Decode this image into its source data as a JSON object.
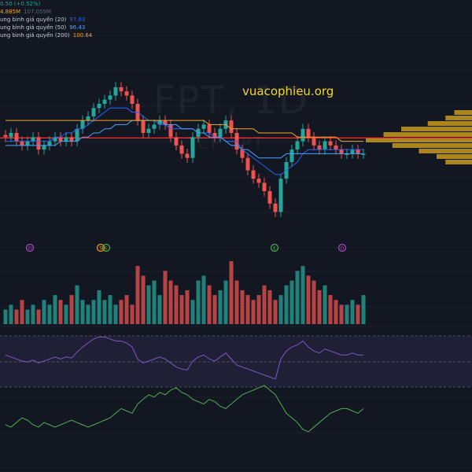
{
  "legend": {
    "change": "0.50 (+0.52%)",
    "volume": "4.885M",
    "volume_dim": "107.059M",
    "ma20_label": "ung bình giá quyền (20)",
    "ma20_value": "97.63",
    "ma50_label": "ung bình giá quyền (50)",
    "ma50_value": "96.43",
    "ma200_label": "ung bình giá quyền (200)",
    "ma200_value": "100.64"
  },
  "watermark": "FPT, 1D",
  "watermark_sub": "CTCP FPT",
  "brand": "vuacophieu.org",
  "colors": {
    "up": "#26a69a",
    "down": "#ef5350",
    "ma20": "#2962ff",
    "ma50": "#4aa3ff",
    "ma200": "#f5a623",
    "support": "#ff2d2d",
    "rsi": "#7e57c2",
    "green_osc": "#4caf50"
  },
  "events": [
    {
      "label": "D",
      "color": "#ab47bc"
    },
    {
      "label": "S",
      "color": "#ff9800"
    },
    {
      "label": "E",
      "color": "#4caf50"
    },
    {
      "label": "E",
      "color": "#4caf50"
    },
    {
      "label": "D",
      "color": "#ab47bc"
    }
  ],
  "chart_data": {
    "type": "candlestick",
    "series": [
      {
        "name": "price",
        "values": [
          100,
          101,
          99,
          98,
          99,
          100,
          97,
          98,
          99,
          100,
          99,
          100,
          99,
          102,
          104,
          105,
          107,
          108,
          109,
          110,
          112,
          111,
          110,
          108,
          104,
          101,
          102,
          103,
          104,
          103,
          100,
          98,
          96,
          95,
          100,
          102,
          103,
          101,
          100,
          102,
          104,
          101,
          97,
          95,
          92,
          90,
          89,
          87,
          84,
          82,
          90,
          94,
          97,
          99,
          102,
          100,
          98,
          97,
          99,
          98,
          97,
          96,
          96,
          97,
          96,
          96
        ]
      },
      {
        "name": "ma20",
        "values": [
          99,
          99,
          99,
          99,
          99,
          99,
          99,
          99,
          99,
          100,
          100,
          101,
          101,
          102,
          102,
          103,
          104,
          105,
          106,
          107,
          107,
          107,
          107,
          106,
          106,
          105,
          104,
          104,
          103,
          103,
          102,
          102,
          102,
          102,
          102,
          101,
          101,
          101,
          100,
          100,
          99,
          99,
          99,
          97,
          96,
          95,
          94,
          93,
          92,
          91,
          91,
          92,
          93,
          94,
          96,
          97,
          97,
          97,
          97,
          97,
          97,
          97,
          97,
          97,
          97,
          97
        ]
      },
      {
        "name": "ma50",
        "values": [
          98,
          98,
          98,
          98,
          98,
          98,
          98,
          98,
          98,
          98,
          99,
          99,
          99,
          99,
          100,
          100,
          101,
          101,
          102,
          102,
          103,
          103,
          103,
          104,
          104,
          104,
          104,
          104,
          104,
          103,
          103,
          103,
          102,
          102,
          102,
          101,
          101,
          100,
          100,
          100,
          99,
          98,
          98,
          97,
          97,
          96,
          95,
          95,
          95,
          95,
          95,
          96,
          96,
          96,
          96,
          96,
          96,
          96,
          96,
          96,
          96,
          96,
          96,
          96,
          96,
          96
        ]
      },
      {
        "name": "ma200",
        "values": [
          104,
          104,
          104,
          104,
          104,
          104,
          104,
          104,
          104,
          104,
          104,
          104,
          104,
          104,
          104,
          104,
          104,
          104,
          104,
          104,
          104,
          104,
          104,
          104,
          104,
          104,
          104,
          104,
          104,
          104,
          104,
          104,
          104,
          104,
          104,
          104,
          104,
          103,
          103,
          103,
          103,
          102,
          102,
          102,
          102,
          102,
          101,
          101,
          101,
          101,
          101,
          101,
          101,
          100,
          100,
          100,
          100,
          100,
          100,
          100,
          100,
          99,
          99,
          99,
          99,
          99
        ]
      }
    ],
    "support_level": 99.8,
    "volume": [
      3,
      4,
      3,
      5,
      3,
      4,
      3,
      5,
      4,
      6,
      5,
      4,
      6,
      8,
      5,
      4,
      5,
      7,
      5,
      6,
      4,
      5,
      6,
      4,
      12,
      10,
      8,
      9,
      6,
      11,
      9,
      8,
      6,
      7,
      5,
      9,
      10,
      8,
      6,
      7,
      9,
      13,
      9,
      7,
      6,
      5,
      6,
      8,
      7,
      5,
      6,
      8,
      9,
      11,
      12,
      10,
      9,
      7,
      8,
      6,
      5,
      4,
      4,
      5,
      4,
      6
    ],
    "rsi": [
      52,
      50,
      48,
      46,
      45,
      47,
      44,
      46,
      48,
      50,
      48,
      50,
      49,
      55,
      60,
      64,
      68,
      70,
      70,
      68,
      66,
      66,
      64,
      60,
      48,
      44,
      46,
      48,
      50,
      48,
      44,
      40,
      38,
      37,
      46,
      50,
      52,
      48,
      46,
      50,
      54,
      48,
      42,
      40,
      38,
      36,
      34,
      32,
      30,
      28,
      48,
      56,
      60,
      62,
      66,
      60,
      56,
      54,
      58,
      56,
      54,
      52,
      52,
      54,
      52,
      52
    ],
    "oscillator": [
      -5,
      -4,
      -6,
      -8,
      -7,
      -5,
      -4,
      -6,
      -5,
      -4,
      -5,
      -6,
      -7,
      -6,
      -5,
      -4,
      -5,
      -6,
      -7,
      -8,
      -10,
      -12,
      -11,
      -10,
      -14,
      -16,
      -18,
      -17,
      -19,
      -18,
      -20,
      -21,
      -19,
      -18,
      -16,
      -15,
      -14,
      -16,
      -15,
      -13,
      -12,
      -14,
      -16,
      -18,
      -19,
      -20,
      -21,
      -22,
      -20,
      -18,
      -14,
      -10,
      -8,
      -6,
      -3,
      -2,
      -4,
      -6,
      -8,
      -10,
      -11,
      -12,
      -12,
      -11,
      -10,
      -12
    ],
    "volume_profile": [
      2,
      3,
      5,
      8,
      10,
      12,
      9,
      6,
      4,
      3
    ]
  }
}
